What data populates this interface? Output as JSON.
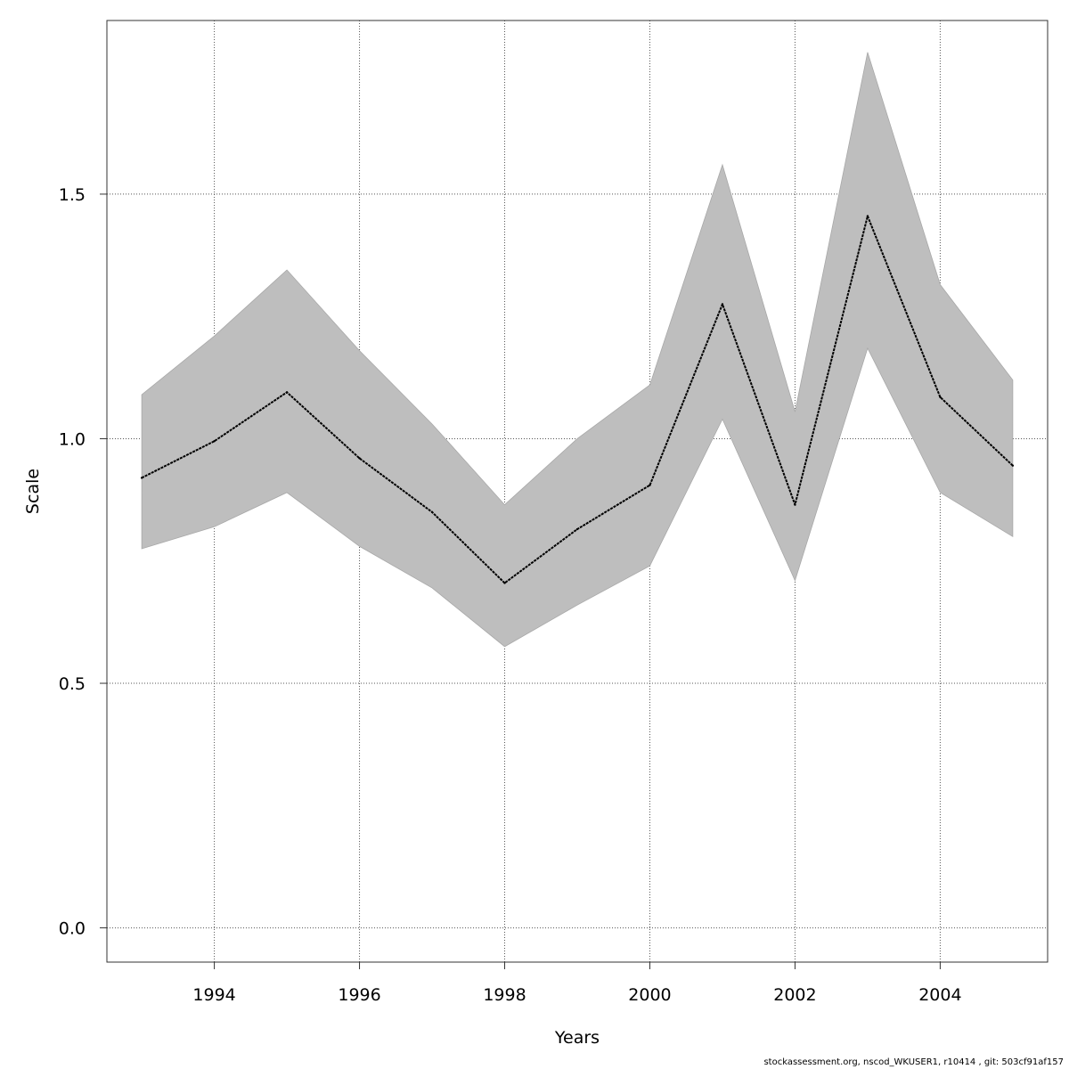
{
  "chart_data": {
    "type": "line",
    "title": "",
    "xlabel": "Years",
    "ylabel": "Scale",
    "xlim": [
      1992.52,
      2005.48
    ],
    "ylim": [
      -0.07,
      1.855
    ],
    "grid": true,
    "x_ticks": [
      1994,
      1996,
      1998,
      2000,
      2002,
      2004
    ],
    "y_ticks": [
      0.0,
      0.5,
      1.0,
      1.5
    ],
    "x_tick_labels": [
      "1994",
      "1996",
      "1998",
      "2000",
      "2002",
      "2004"
    ],
    "y_tick_labels": [
      "0.0",
      "0.5",
      "1.0",
      "1.5"
    ],
    "x": [
      1993,
      1994,
      1995,
      1996,
      1997,
      1998,
      1999,
      2000,
      2001,
      2002,
      2003,
      2004,
      2005
    ],
    "series": [
      {
        "values": [
          0.92,
          0.995,
          1.095,
          0.96,
          0.85,
          0.705,
          0.815,
          0.905,
          1.275,
          0.865,
          1.455,
          1.085,
          0.945
        ]
      }
    ],
    "band": {
      "lower": [
        0.775,
        0.82,
        0.89,
        0.78,
        0.695,
        0.575,
        0.66,
        0.74,
        1.04,
        0.71,
        1.185,
        0.89,
        0.8
      ],
      "upper": [
        1.09,
        1.21,
        1.345,
        1.18,
        1.03,
        0.865,
        1.0,
        1.11,
        1.56,
        1.055,
        1.79,
        1.315,
        1.12
      ]
    },
    "colors": {
      "band": "#bebebe",
      "line": "#000000",
      "grid": "#555555"
    }
  },
  "footer": {
    "text": "stockassessment.org, nscod_WKUSER1, r10414 , git: 503cf91af157"
  }
}
